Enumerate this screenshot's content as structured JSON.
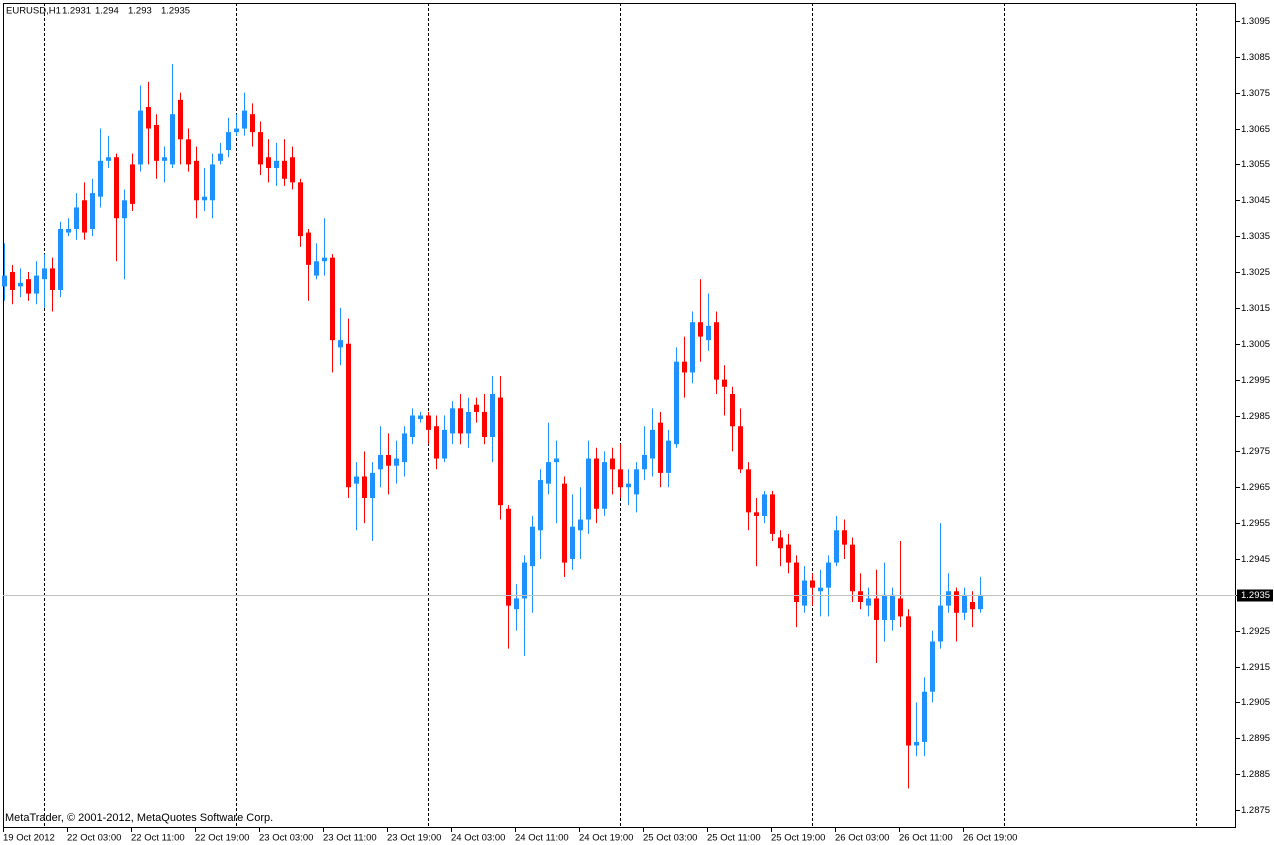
{
  "chart_data": {
    "type": "candlestick",
    "title": "EURUSD,H1",
    "annotation": "MetaTrader, © 2001-2012, MetaQuotes Software Corp.",
    "up_color": "#1e90ff",
    "down_color": "#ff0000",
    "categories": [
      "19 Oct 2012",
      null,
      null,
      null,
      null,
      null,
      null,
      null,
      "22 Oct 03:00",
      null,
      null,
      null,
      null,
      null,
      null,
      null,
      "22 Oct 11:00",
      null,
      null,
      null,
      null,
      null,
      null,
      null,
      "22 Oct 19:00",
      null,
      null,
      null,
      null,
      null,
      null,
      null,
      "23 Oct 03:00",
      null,
      null,
      null,
      null,
      null,
      null,
      null,
      "23 Oct 11:00",
      null,
      null,
      null,
      null,
      null,
      null,
      null,
      "23 Oct 19:00",
      null,
      null,
      null,
      null,
      null,
      null,
      null,
      "24 Oct 03:00",
      null,
      null,
      null,
      null,
      null,
      null,
      null,
      "24 Oct 11:00",
      null,
      null,
      null,
      null,
      null,
      null,
      null,
      "24 Oct 19:00",
      null,
      null,
      null,
      null,
      null,
      null,
      null,
      "25 Oct 03:00",
      null,
      null,
      null,
      null,
      null,
      null,
      null,
      "25 Oct 11:00",
      null,
      null,
      null,
      null,
      null,
      null,
      null,
      "25 Oct 19:00",
      null,
      null,
      null,
      null,
      null,
      null,
      null,
      "26 Oct 03:00",
      null,
      null,
      null,
      null,
      null,
      null,
      null,
      "26 Oct 11:00",
      null,
      null,
      null,
      null,
      null,
      null,
      null,
      "26 Oct 19:00",
      null,
      null
    ],
    "open": [
      1.3021,
      1.3025,
      1.3021,
      1.3023,
      1.3019,
      1.3023,
      1.3026,
      1.302,
      1.3036,
      1.3037,
      1.3045,
      1.3037,
      1.3046,
      1.3056,
      1.3057,
      1.304,
      1.3055,
      1.3055,
      1.3071,
      1.3066,
      1.3056,
      1.3055,
      1.3073,
      1.3062,
      1.3056,
      1.3045,
      1.3045,
      1.3056,
      1.3059,
      1.3064,
      1.3065,
      1.3069,
      1.3064,
      1.3057,
      1.3054,
      1.3056,
      1.3057,
      1.305,
      1.3036,
      1.3024,
      1.3028,
      1.3029,
      1.3004,
      1.3005,
      1.2966,
      1.2968,
      1.2962,
      1.297,
      1.2974,
      1.2971,
      1.2972,
      1.2979,
      1.2984,
      1.2985,
      1.2982,
      1.2973,
      1.298,
      1.2987,
      1.298,
      1.2988,
      1.2986,
      1.2979,
      1.299,
      1.2959,
      1.2931,
      1.2934,
      1.2943,
      1.2953,
      1.2966,
      1.2972,
      1.2966,
      1.2945,
      1.2953,
      1.2956,
      1.2973,
      1.2959,
      1.2973,
      1.297,
      1.2965,
      1.2963,
      1.297,
      1.2973,
      1.2983,
      1.2969,
      1.2977,
      1.3,
      1.2997,
      1.3011,
      1.3006,
      1.3011,
      1.2995,
      1.2991,
      1.2982,
      1.297,
      1.2958,
      1.2957,
      1.2963,
      1.2951,
      1.2949,
      1.2944,
      1.2932,
      1.2939,
      1.2936,
      1.2937,
      1.2944,
      1.2953,
      1.2949,
      1.2936,
      1.2932,
      1.2934,
      1.2928,
      1.2928,
      1.2934,
      1.2929,
      1.2893,
      1.2894,
      1.2908,
      1.2922,
      1.2932,
      1.2936,
      1.293,
      1.2933,
      1.2931
    ],
    "high": [
      1.3033,
      1.3027,
      1.3026,
      1.3025,
      1.3028,
      1.303,
      1.3029,
      1.3039,
      1.304,
      1.3047,
      1.305,
      1.3051,
      1.3065,
      1.3063,
      1.3058,
      1.3048,
      1.3058,
      1.3077,
      1.3078,
      1.3069,
      1.306,
      1.3083,
      1.3075,
      1.3065,
      1.306,
      1.3054,
      1.3058,
      1.3061,
      1.3068,
      1.3069,
      1.3075,
      1.3072,
      1.3067,
      1.3062,
      1.3061,
      1.3062,
      1.306,
      1.3051,
      1.3037,
      1.3033,
      1.304,
      1.303,
      1.3015,
      1.3012,
      1.2972,
      1.2975,
      1.2972,
      1.2982,
      1.298,
      1.2978,
      1.2982,
      1.2987,
      1.2986,
      1.2986,
      1.2985,
      1.2985,
      1.2989,
      1.2991,
      1.299,
      1.299,
      1.2991,
      1.2996,
      1.2996,
      1.296,
      1.2938,
      1.2946,
      1.2957,
      1.297,
      1.2983,
      1.2978,
      1.2968,
      1.2963,
      1.2965,
      1.2978,
      1.2976,
      1.2975,
      1.2976,
      1.2977,
      1.297,
      1.2972,
      1.2982,
      1.2987,
      1.2986,
      1.2981,
      1.3004,
      1.3007,
      1.3014,
      1.3023,
      1.3019,
      1.3014,
      1.2999,
      1.2993,
      1.2987,
      1.2972,
      1.2962,
      1.2964,
      1.2964,
      1.2953,
      1.2952,
      1.2946,
      1.2943,
      1.2941,
      1.2942,
      1.2946,
      1.2957,
      1.2956,
      1.2951,
      1.2941,
      1.2937,
      1.2942,
      1.2944,
      1.2937,
      1.295,
      1.2931,
      1.2905,
      1.2912,
      1.2925,
      1.2955,
      1.2941,
      1.2937,
      1.2937,
      1.2936,
      1.294
    ],
    "low": [
      1.3017,
      1.3016,
      1.3018,
      1.3017,
      1.3016,
      1.3015,
      1.3014,
      1.3018,
      1.3035,
      1.3034,
      1.3034,
      1.3035,
      1.3043,
      1.3054,
      1.3028,
      1.3023,
      1.3042,
      1.3053,
      1.3055,
      1.3051,
      1.305,
      1.3054,
      1.3055,
      1.3053,
      1.304,
      1.3042,
      1.304,
      1.3055,
      1.3057,
      1.3063,
      1.3063,
      1.306,
      1.3052,
      1.305,
      1.3049,
      1.3049,
      1.3048,
      1.3032,
      1.3017,
      1.3023,
      1.3024,
      1.2997,
      1.2999,
      1.2962,
      1.2953,
      1.2955,
      1.295,
      1.2965,
      1.2963,
      1.2966,
      1.2968,
      1.2977,
      1.2983,
      1.2977,
      1.297,
      1.2972,
      1.2977,
      1.2977,
      1.2976,
      1.2983,
      1.2977,
      1.2972,
      1.2956,
      1.292,
      1.2925,
      1.2918,
      1.293,
      1.2945,
      1.2963,
      1.2955,
      1.294,
      1.2942,
      1.2945,
      1.2952,
      1.2955,
      1.2957,
      1.2963,
      1.2962,
      1.296,
      1.2958,
      1.2967,
      1.2968,
      1.2965,
      1.2965,
      1.2976,
      1.299,
      1.2994,
      1.3,
      1.3003,
      1.2991,
      1.2985,
      1.2975,
      1.2969,
      1.2953,
      1.2943,
      1.2955,
      1.295,
      1.2943,
      1.2941,
      1.2926,
      1.293,
      1.2932,
      1.2929,
      1.2929,
      1.2943,
      1.2945,
      1.2933,
      1.2931,
      1.2929,
      1.2916,
      1.2922,
      1.2925,
      1.2926,
      1.2881,
      1.289,
      1.289,
      1.2905,
      1.292,
      1.293,
      1.2922,
      1.2928,
      1.2926,
      1.293
    ],
    "close": [
      1.3024,
      1.302,
      1.3022,
      1.3019,
      1.3024,
      1.3026,
      1.302,
      1.3037,
      1.3037,
      1.3043,
      1.3036,
      1.3047,
      1.3056,
      1.3057,
      1.304,
      1.3045,
      1.3044,
      1.307,
      1.3065,
      1.3056,
      1.3057,
      1.3069,
      1.3062,
      1.3055,
      1.3045,
      1.3046,
      1.3055,
      1.3058,
      1.3064,
      1.3065,
      1.307,
      1.3064,
      1.3055,
      1.3054,
      1.3056,
      1.3051,
      1.305,
      1.3035,
      1.3027,
      1.3028,
      1.3029,
      1.3006,
      1.3006,
      1.2965,
      1.2968,
      1.2962,
      1.2969,
      1.2974,
      1.2971,
      1.2973,
      1.298,
      1.2985,
      1.2985,
      1.2981,
      1.2973,
      1.2981,
      1.2987,
      1.298,
      1.2986,
      1.2986,
      1.2979,
      1.2991,
      1.296,
      1.2932,
      1.2934,
      1.2944,
      1.2954,
      1.2967,
      1.2972,
      1.2973,
      1.2944,
      1.2954,
      1.2956,
      1.2973,
      1.2959,
      1.2972,
      1.297,
      1.2965,
      1.2966,
      1.297,
      1.2974,
      1.2981,
      1.2969,
      1.2978,
      1.3,
      1.2997,
      1.3011,
      1.3007,
      1.301,
      1.2995,
      1.2993,
      1.2982,
      1.297,
      1.2958,
      1.2957,
      1.2963,
      1.2952,
      1.2948,
      1.2944,
      1.2933,
      1.2939,
      1.2937,
      1.2937,
      1.2944,
      1.2953,
      1.2949,
      1.2936,
      1.2933,
      1.2934,
      1.2928,
      1.2935,
      1.2935,
      1.2929,
      1.2893,
      1.2894,
      1.2908,
      1.2922,
      1.2932,
      1.2936,
      1.293,
      1.2935,
      1.2931,
      1.2935
    ],
    "ylim": [
      1.287,
      1.31
    ],
    "yticks": [
      1.3095,
      1.3085,
      1.3075,
      1.3065,
      1.3055,
      1.3045,
      1.3035,
      1.3025,
      1.3015,
      1.3005,
      1.2995,
      1.2985,
      1.2975,
      1.2965,
      1.2955,
      1.2945,
      1.2935,
      1.2925,
      1.2915,
      1.2905,
      1.2895,
      1.2885,
      1.2875
    ]
  }
}
